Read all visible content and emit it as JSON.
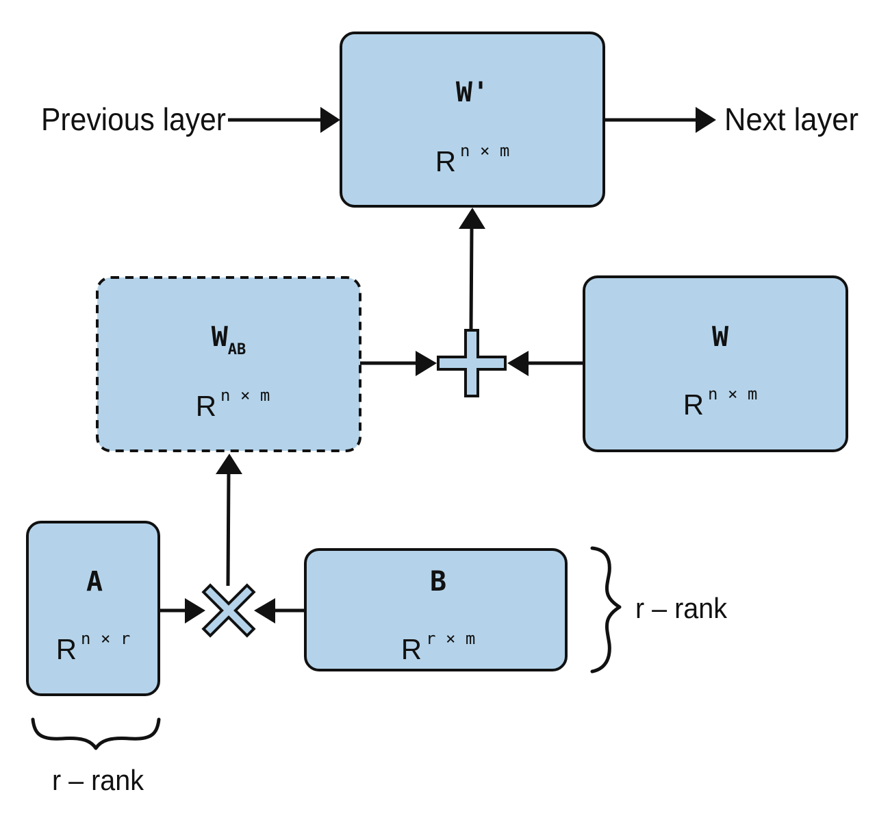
{
  "labels": {
    "previous": "Previous layer",
    "next": "Next layer"
  },
  "nodes": {
    "w_prime": {
      "name": "W'",
      "dim_base": "R",
      "dim_exp": "n × m"
    },
    "w_ab": {
      "name": "W",
      "subscript": "AB",
      "dim_base": "R",
      "dim_exp": "n × m"
    },
    "w": {
      "name": "W",
      "dim_base": "R",
      "dim_exp": "n × m"
    },
    "a": {
      "name": "A",
      "dim_base": "R",
      "dim_exp": "n × r"
    },
    "b": {
      "name": "B",
      "dim_base": "R",
      "dim_exp": "r × m"
    }
  },
  "ranks": {
    "b": "r – rank",
    "a": "r – rank"
  },
  "operators": {
    "sum": "plus-icon",
    "product": "multiply-icon"
  },
  "colors": {
    "box_fill": "#b4d3ea",
    "stroke": "#111111"
  }
}
